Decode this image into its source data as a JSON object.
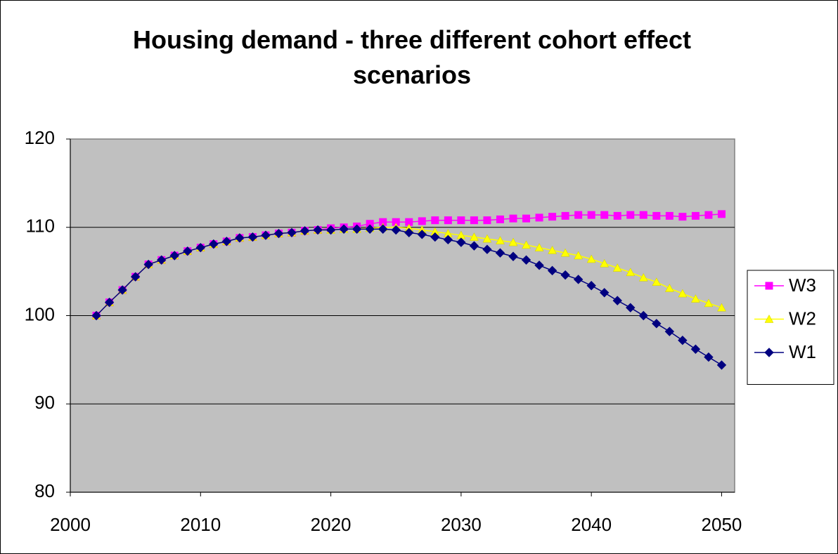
{
  "chart_data": {
    "type": "line",
    "title": "Housing demand - three different cohort effect scenarios",
    "x": [
      2002,
      2003,
      2004,
      2005,
      2006,
      2007,
      2008,
      2009,
      2010,
      2011,
      2012,
      2013,
      2014,
      2015,
      2016,
      2017,
      2018,
      2019,
      2020,
      2021,
      2022,
      2023,
      2024,
      2025,
      2026,
      2027,
      2028,
      2029,
      2030,
      2031,
      2032,
      2033,
      2034,
      2035,
      2036,
      2037,
      2038,
      2039,
      2040,
      2041,
      2042,
      2043,
      2044,
      2045,
      2046,
      2047,
      2048,
      2049,
      2050
    ],
    "series": [
      {
        "name": "W3",
        "color": "#ff00ff",
        "marker": "square",
        "values": [
          100,
          101.5,
          102.9,
          104.4,
          105.8,
          106.3,
          106.8,
          107.3,
          107.7,
          108.1,
          108.4,
          108.8,
          108.9,
          109.1,
          109.3,
          109.4,
          109.6,
          109.7,
          109.9,
          110.0,
          110.1,
          110.4,
          110.6,
          110.6,
          110.6,
          110.7,
          110.8,
          110.8,
          110.8,
          110.8,
          110.8,
          110.9,
          111.0,
          111.0,
          111.1,
          111.2,
          111.3,
          111.4,
          111.4,
          111.4,
          111.3,
          111.4,
          111.4,
          111.3,
          111.3,
          111.2,
          111.3,
          111.4,
          111.5
        ]
      },
      {
        "name": "W2",
        "color": "#ffff00",
        "marker": "triangle",
        "values": [
          100,
          101.5,
          102.9,
          104.4,
          105.8,
          106.3,
          106.8,
          107.3,
          107.7,
          108.1,
          108.4,
          108.8,
          108.9,
          109.1,
          109.3,
          109.4,
          109.6,
          109.7,
          109.7,
          109.8,
          109.8,
          109.9,
          110.0,
          110.0,
          109.9,
          109.7,
          109.5,
          109.3,
          109.1,
          108.9,
          108.7,
          108.5,
          108.3,
          108.0,
          107.7,
          107.4,
          107.1,
          106.8,
          106.4,
          105.9,
          105.4,
          104.9,
          104.3,
          103.8,
          103.1,
          102.5,
          101.9,
          101.4,
          100.9
        ]
      },
      {
        "name": "W1",
        "color": "#000080",
        "marker": "diamond",
        "values": [
          100,
          101.5,
          102.9,
          104.4,
          105.8,
          106.3,
          106.8,
          107.3,
          107.7,
          108.1,
          108.4,
          108.8,
          108.9,
          109.1,
          109.3,
          109.4,
          109.6,
          109.7,
          109.7,
          109.8,
          109.8,
          109.8,
          109.8,
          109.7,
          109.4,
          109.2,
          108.9,
          108.6,
          108.3,
          107.9,
          107.5,
          107.1,
          106.7,
          106.3,
          105.7,
          105.1,
          104.6,
          104.1,
          103.4,
          102.6,
          101.7,
          100.9,
          100.0,
          99.1,
          98.2,
          97.2,
          96.2,
          95.3,
          94.4
        ]
      }
    ],
    "xlim": [
      2000,
      2051
    ],
    "xticks": [
      2000,
      2010,
      2020,
      2030,
      2040,
      2050
    ],
    "ylim": [
      80,
      120
    ],
    "yticks": [
      80,
      90,
      100,
      110,
      120
    ],
    "grid": true,
    "plot_background": "#c0c0c0",
    "legend": "right"
  }
}
